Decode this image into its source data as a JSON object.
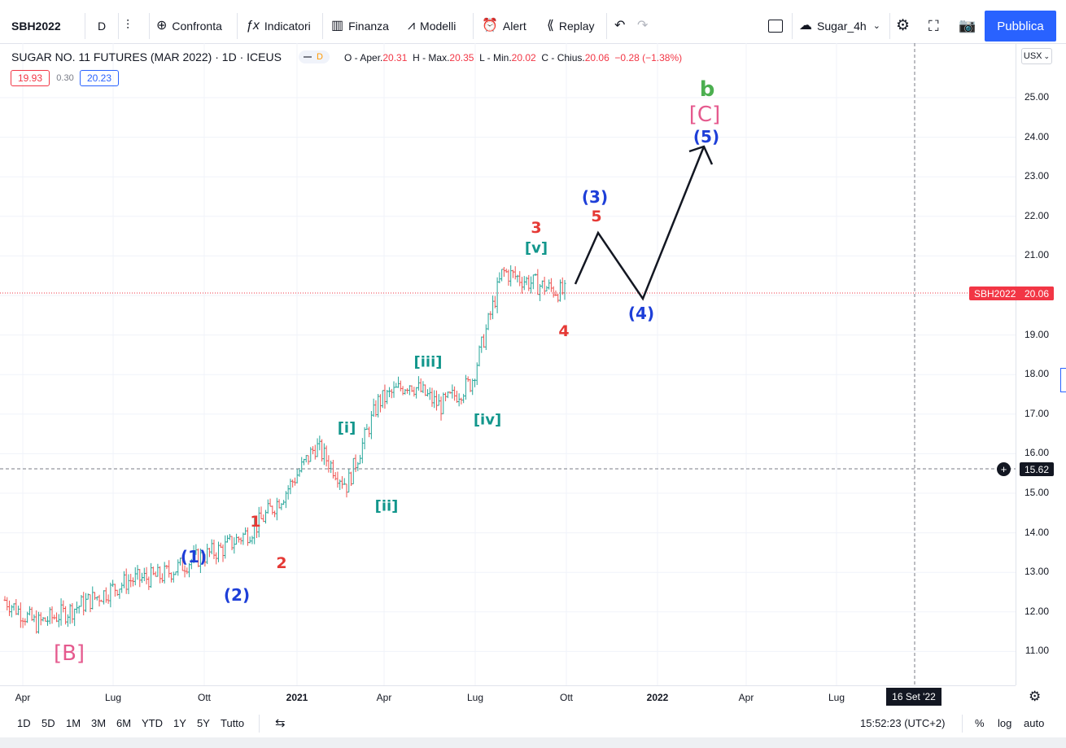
{
  "toolbar": {
    "symbol": "SBH2022",
    "interval": "D",
    "compare": "Confronta",
    "indicators": "Indicatori",
    "financials": "Finanza",
    "templates": "Modelli",
    "alert": "Alert",
    "replay": "Replay",
    "layout_name": "Sugar_4h",
    "publish": "Pubblica"
  },
  "legend": {
    "title": "SUGAR NO. 11 FUTURES (MAR 2022) · 1D · ICEUS",
    "badge": "D",
    "o_label": "O - Aper.",
    "o": "20.31",
    "h_label": "H - Max.",
    "h": "20.35",
    "l_label": "L - Min.",
    "l": "20.02",
    "c_label": "C - Chius.",
    "c": "20.06",
    "change": "−0.28 (−1.38%)",
    "bid": "19.93",
    "spread": "0.30",
    "ask": "20.23"
  },
  "price_scale": {
    "currency": "USX",
    "ticks": [
      "25.00",
      "24.00",
      "23.00",
      "22.00",
      "21.00",
      "20.00",
      "19.00",
      "18.00",
      "17.00",
      "16.00",
      "15.00",
      "14.00",
      "13.00",
      "12.00",
      "11.00"
    ],
    "last_symbol": "SBH2022",
    "last_price": "20.06",
    "crosshair_price": "15.62"
  },
  "time_axis": {
    "ticks": [
      "Apr",
      "Lug",
      "Ott",
      "2021",
      "Apr",
      "Lug",
      "Ott",
      "2022",
      "Apr",
      "Lug"
    ],
    "crosshair_date": "16 Set '22"
  },
  "wave_labels": {
    "b": "b",
    "C": "[C]",
    "w5": "(5)",
    "w3": "(3)",
    "r5": "5",
    "r3": "3",
    "v": "[v]",
    "w4": "(4)",
    "r4": "4",
    "iii": "[iii]",
    "iv": "[iv]",
    "i": "[i]",
    "ii": "[ii]",
    "r1": "1",
    "r2": "2",
    "w1": "(1)",
    "w2": "(2)",
    "B": "[B]"
  },
  "bottom": {
    "ranges": [
      "1D",
      "5D",
      "1M",
      "3M",
      "6M",
      "YTD",
      "1Y",
      "5Y",
      "Tutto"
    ],
    "clock": "15:52:23 (UTC+2)",
    "percent": "%",
    "log": "log",
    "auto": "auto"
  },
  "colors": {
    "up": "#26a69a",
    "down": "#ef5350",
    "accent": "#2962ff",
    "wave_blue": "#1e3fd8",
    "wave_red": "#e53935",
    "wave_teal": "#12968c",
    "wave_pink": "#e55a8e",
    "wave_green": "#4caf50"
  },
  "chart_data": {
    "type": "line",
    "x": [
      "2020-04",
      "2020-05",
      "2020-06",
      "2020-07",
      "2020-08",
      "2020-09",
      "2020-10",
      "2020-11",
      "2020-12",
      "2021-01",
      "2021-02",
      "2021-03",
      "2021-04",
      "2021-05",
      "2021-06",
      "2021-07",
      "2021-08",
      "2021-09",
      "2021-10"
    ],
    "series": [
      {
        "values": [
          12.3,
          11.7,
          12.0,
          12.4,
          12.8,
          12.9,
          13.3,
          13.6,
          14.1,
          15.0,
          16.2,
          15.2,
          17.3,
          17.8,
          17.2,
          17.8,
          20.6,
          20.3,
          20.06
        ]
      }
    ],
    "projection": [
      "21.5",
      "19.9",
      "24.0"
    ],
    "ylim": [
      10.6,
      25.7
    ]
  }
}
